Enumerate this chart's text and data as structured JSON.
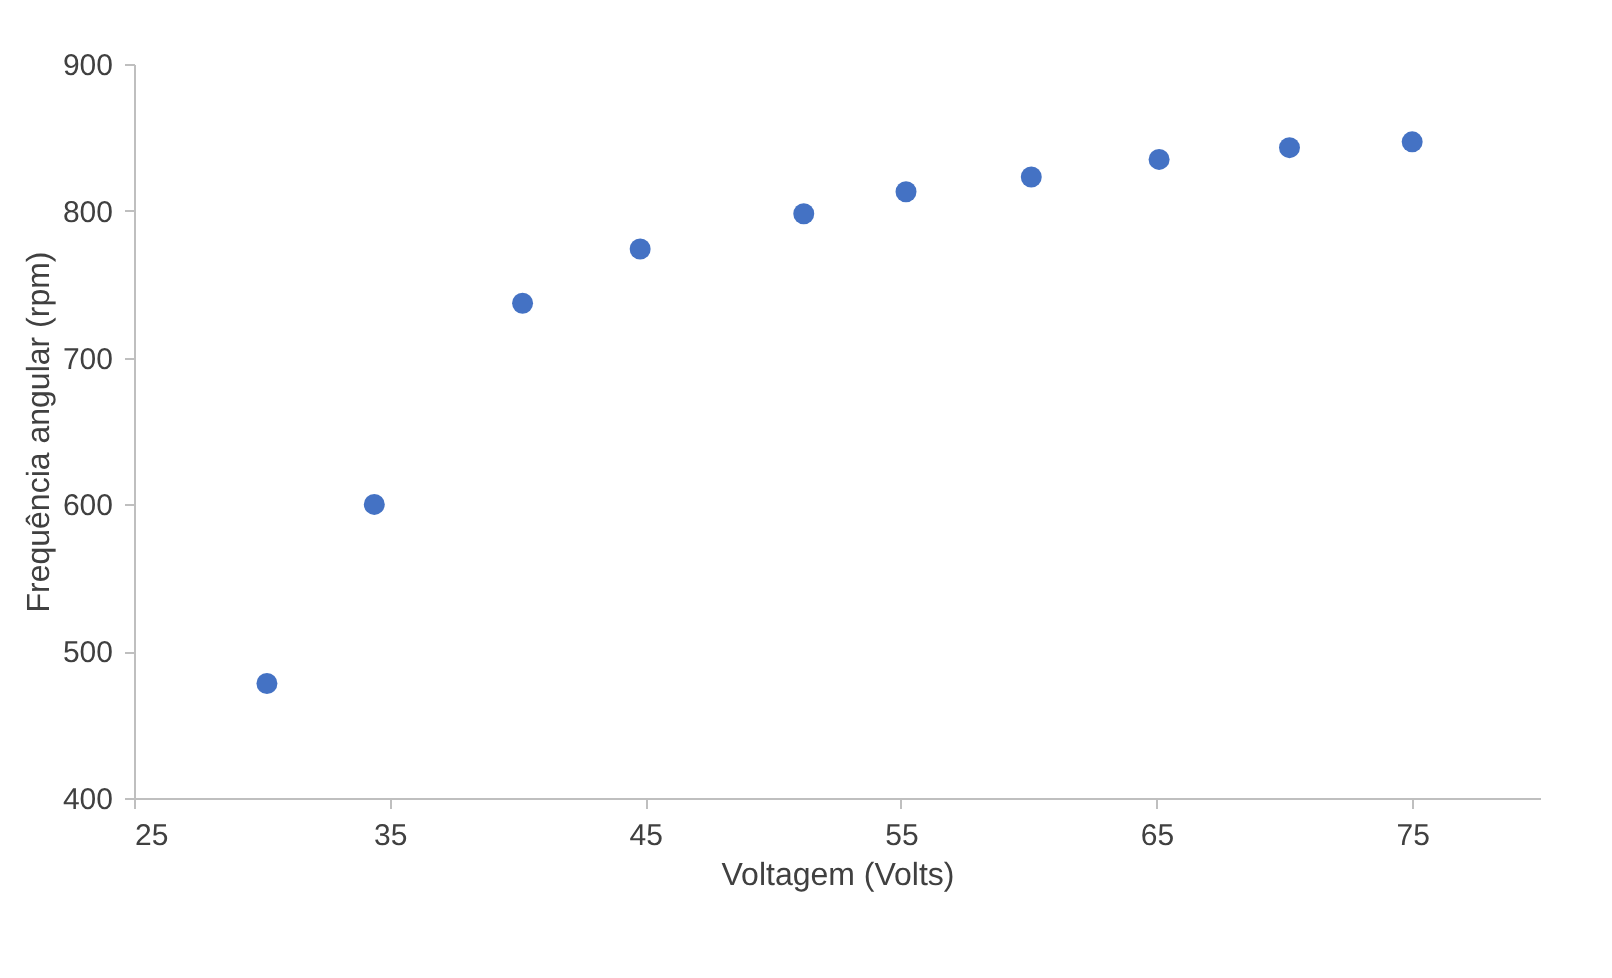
{
  "chart_data": {
    "type": "scatter",
    "xlabel": "Voltagem (Volts)",
    "ylabel": "Frequência angular (rpm)",
    "x": [
      30.2,
      34.4,
      40.2,
      44.8,
      51.2,
      55.2,
      60.1,
      65.1,
      70.2,
      75.0
    ],
    "series": [
      {
        "color": "#4472c4",
        "values": [
          478,
          600,
          737,
          774,
          798,
          813,
          823,
          835,
          843,
          847
        ]
      }
    ],
    "xlim": [
      25,
      80
    ],
    "xticks": [
      25,
      35,
      45,
      55,
      65,
      75
    ],
    "ylim": [
      400,
      900
    ],
    "yticks": [
      400,
      500,
      600,
      700,
      800,
      900
    ],
    "grid": false,
    "legend": false,
    "marker": "circle"
  }
}
